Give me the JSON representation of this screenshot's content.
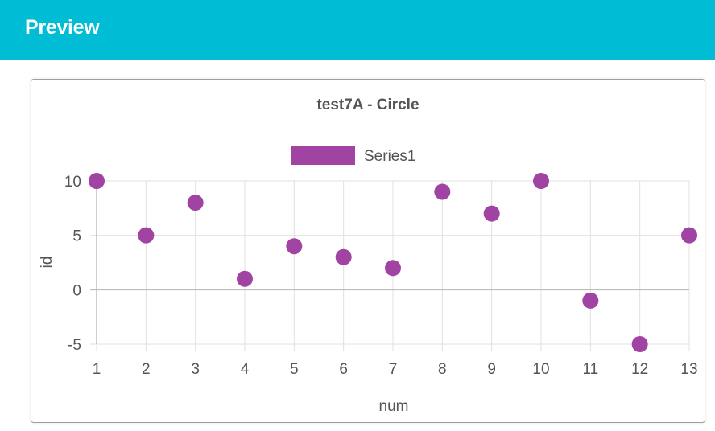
{
  "header": {
    "title": "Preview"
  },
  "chart_data": {
    "type": "scatter",
    "title": "test7A - Circle",
    "xlabel": "num",
    "ylabel": "id",
    "xlim": [
      1,
      13
    ],
    "ylim": [
      -5,
      10
    ],
    "x_ticks": [
      1,
      2,
      3,
      4,
      5,
      6,
      7,
      8,
      9,
      10,
      11,
      12,
      13
    ],
    "y_ticks": [
      -5,
      0,
      5,
      10
    ],
    "grid": true,
    "legend": "top",
    "series": [
      {
        "name": "Series1",
        "color": "#a043a3",
        "marker": "circle",
        "x": [
          1,
          2,
          3,
          4,
          5,
          6,
          7,
          8,
          9,
          10,
          11,
          12,
          13
        ],
        "y": [
          10,
          5,
          8,
          1,
          4,
          3,
          2,
          9,
          7,
          10,
          -1,
          -5,
          5
        ]
      }
    ]
  }
}
